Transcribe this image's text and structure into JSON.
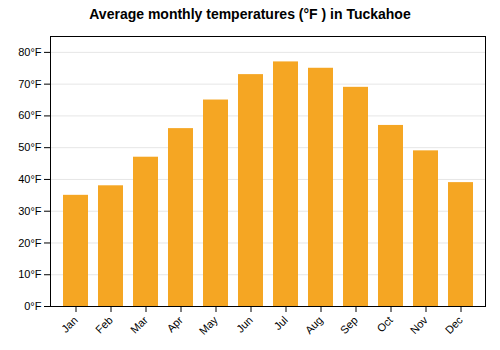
{
  "chart_data": {
    "type": "bar",
    "title": "Average monthly temperatures (°F ) in Tuckahoe",
    "categories": [
      "Jan",
      "Feb",
      "Mar",
      "Apr",
      "May",
      "Jun",
      "Jul",
      "Aug",
      "Sep",
      "Oct",
      "Nov",
      "Dec"
    ],
    "values": [
      35,
      38,
      47,
      56,
      65,
      73,
      77,
      75,
      69,
      57,
      49,
      39
    ],
    "color": "#F5A623",
    "ylim": [
      0,
      85
    ],
    "yticks": [
      {
        "value": 0,
        "label": "0°F"
      },
      {
        "value": 10,
        "label": "10°F"
      },
      {
        "value": 20,
        "label": "20°F"
      },
      {
        "value": 30,
        "label": "30°F"
      },
      {
        "value": 40,
        "label": "40°F"
      },
      {
        "value": 50,
        "label": "50°F"
      },
      {
        "value": 60,
        "label": "60°F"
      },
      {
        "value": 70,
        "label": "70°F"
      },
      {
        "value": 80,
        "label": "80°F"
      }
    ],
    "grid": true
  }
}
